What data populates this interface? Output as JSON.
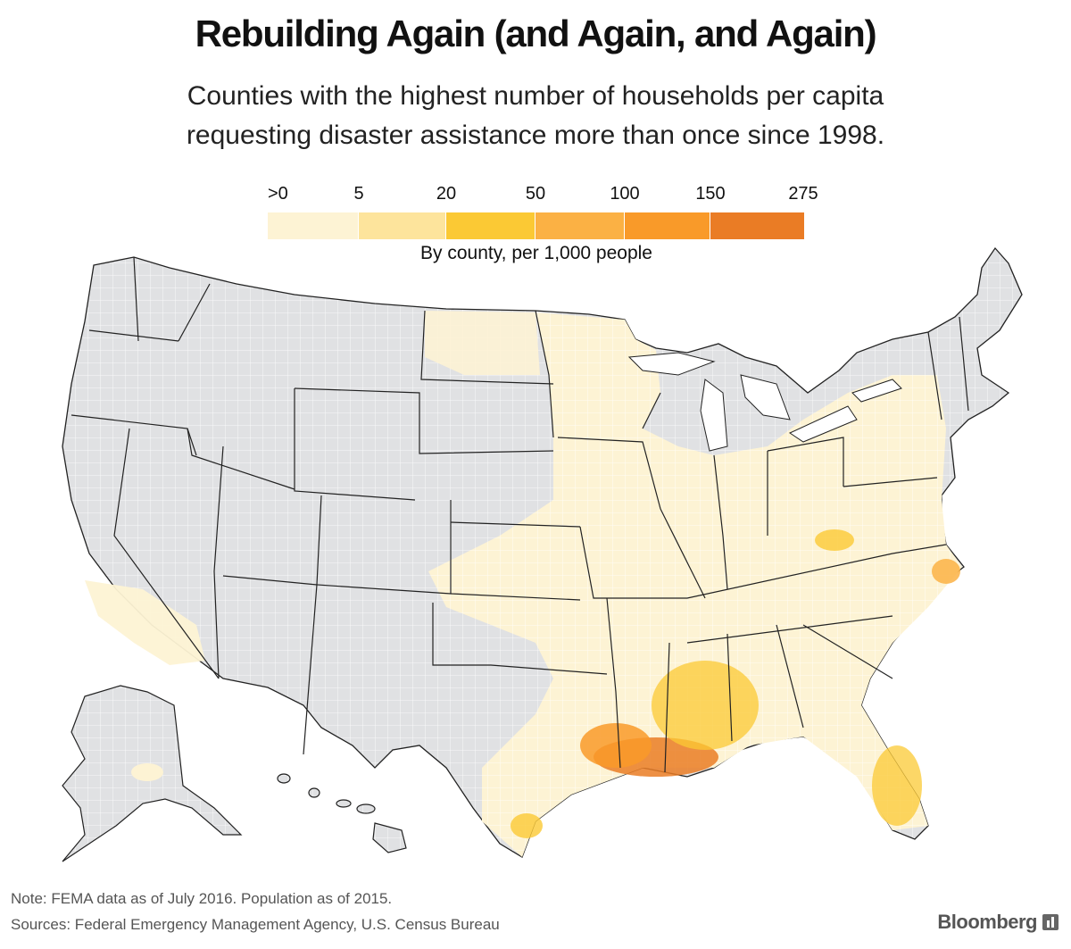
{
  "header": {
    "title": "Rebuilding Again (and Again, and Again)",
    "subtitle_line1": "Counties with the highest number of households per capita",
    "subtitle_line2": "requesting disaster assistance more than once since 1998."
  },
  "legend": {
    "ticks": [
      ">0",
      "5",
      "20",
      "50",
      "100",
      "150",
      "275"
    ],
    "caption": "By county, per 1,000 people",
    "colors": [
      "#fdf3d4",
      "#fde49c",
      "#fbc934",
      "#fbb144",
      "#f99a29",
      "#ea7c25"
    ],
    "no_data_color": "#e0e1e3"
  },
  "footer": {
    "note": "Note: FEMA data as of July 2016. Population as of 2015.",
    "sources": "Sources: Federal Emergency Management Agency, U.S. Census Bureau",
    "brand": "Bloomberg"
  }
}
